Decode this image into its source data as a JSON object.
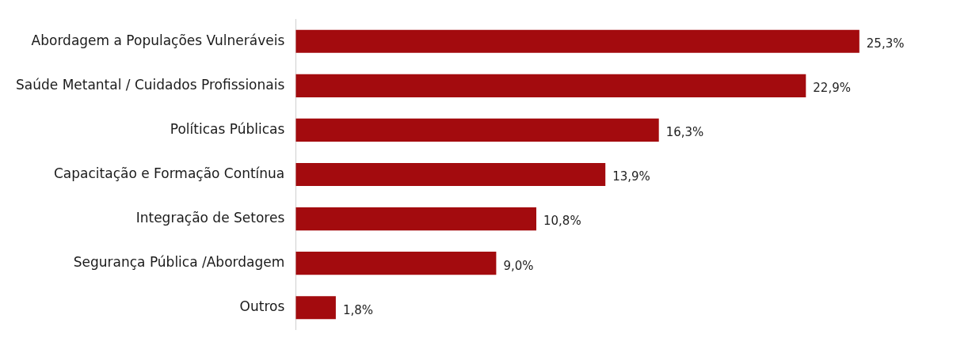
{
  "chart_data": {
    "type": "bar",
    "orientation": "horizontal",
    "categories": [
      "Abordagem a Populações Vulneráveis",
      "Saúde Metantal / Cuidados Profissionais",
      "Políticas Públicas",
      "Capacitação e Formação Contínua",
      "Integração de Setores",
      "Segurança Pública /Abordagem",
      "Outros"
    ],
    "values": [
      25.3,
      22.9,
      16.3,
      13.9,
      10.8,
      9.0,
      1.8
    ],
    "value_labels": [
      "25,3%",
      "22,9%",
      "16,3%",
      "13,9%",
      "10,8%",
      "9,0%",
      "1,8%"
    ],
    "color": "#a30b0e",
    "legend": false
  }
}
